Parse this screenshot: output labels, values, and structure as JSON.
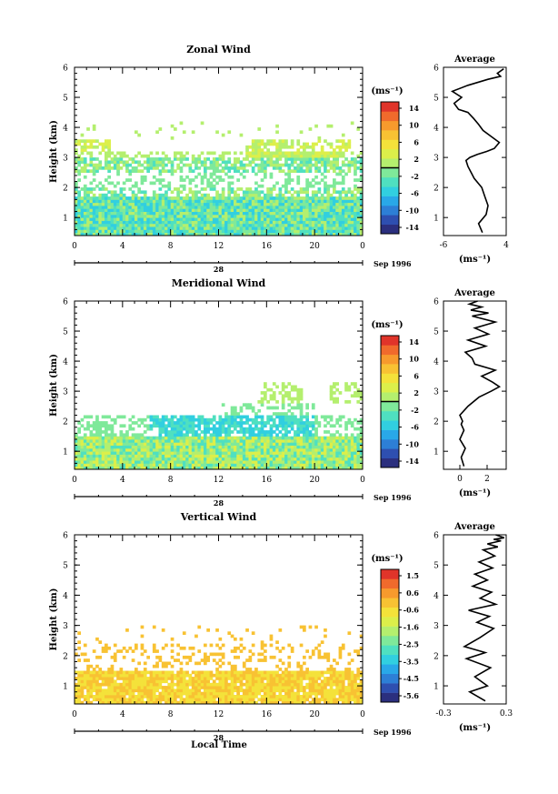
{
  "figure": {
    "date_label": "Sep 1996",
    "xlabel_bottom": "Local Time",
    "day_label": "28",
    "units_label": "(ms⁻¹)",
    "avg_unit_label": "(ms⁻¹)"
  },
  "chart_data": [
    {
      "type": "heatmap",
      "title": "Zonal Wind",
      "ylabel": "Height (km)",
      "xlabel": "Local Time",
      "x_ticks": [
        "0",
        "4",
        "8",
        "12",
        "16",
        "20",
        "0"
      ],
      "xlim": [
        0,
        24
      ],
      "y_ticks": [
        "1",
        "2",
        "3",
        "4",
        "5",
        "6"
      ],
      "ylim": [
        0.4,
        6
      ],
      "day_label": "28",
      "date_label": "Sep 1996",
      "colorbar": {
        "label": "(ms⁻¹)",
        "ticks": [
          "14",
          "10",
          "6",
          "2",
          "-2",
          "-6",
          "-10",
          "-14"
        ],
        "range": [
          -16,
          16
        ],
        "colors": [
          "#2b2f7e",
          "#2e4fb0",
          "#2d7fd6",
          "#29a8e8",
          "#31cfe0",
          "#4fe0c0",
          "#7fe99a",
          "#b4ef6e",
          "#dcef4a",
          "#f4e23a",
          "#f8c233",
          "#f79a2d",
          "#f06a2c",
          "#e0342a"
        ]
      }
    },
    {
      "type": "line",
      "title": "Average",
      "xlabel": "(ms⁻¹)",
      "x_ticks": [
        "-6",
        "4"
      ],
      "xlim": [
        -6,
        4
      ],
      "y_ticks": [
        "1",
        "2",
        "3",
        "4",
        "5",
        "6"
      ],
      "ylim": [
        0.4,
        6
      ],
      "series": [
        {
          "x": [
            0.2,
            -0.4,
            0.8,
            1.1,
            0.6,
            0.1,
            -1.1,
            -1.6,
            -2.1,
            -2.4,
            -1.8,
            -0.6,
            0.9,
            2.1,
            2.9,
            1.6,
            0.3,
            -0.4,
            -1.2,
            -2.1,
            -3.6,
            -4.3,
            -3.1,
            -4.6,
            -2.1,
            1.1,
            3.1,
            2.6,
            3.6
          ],
          "y": [
            0.5,
            0.8,
            1.1,
            1.4,
            1.7,
            2.0,
            2.3,
            2.5,
            2.7,
            2.9,
            3.0,
            3.1,
            3.2,
            3.3,
            3.5,
            3.7,
            3.9,
            4.1,
            4.3,
            4.5,
            4.6,
            4.8,
            5.0,
            5.2,
            5.4,
            5.6,
            5.7,
            5.8,
            5.95
          ]
        }
      ]
    },
    {
      "type": "heatmap",
      "title": "Meridional Wind",
      "ylabel": "Height (km)",
      "xlabel": "Local Time",
      "x_ticks": [
        "0",
        "4",
        "8",
        "12",
        "16",
        "20",
        "0"
      ],
      "xlim": [
        0,
        24
      ],
      "y_ticks": [
        "1",
        "2",
        "3",
        "4",
        "5",
        "6"
      ],
      "ylim": [
        0.4,
        6
      ],
      "day_label": "28",
      "date_label": "Sep 1996",
      "colorbar": {
        "label": "(ms⁻¹)",
        "ticks": [
          "14",
          "10",
          "6",
          "2",
          "-2",
          "-6",
          "-10",
          "-14"
        ],
        "range": [
          -16,
          16
        ],
        "colors": [
          "#2b2f7e",
          "#2e4fb0",
          "#2d7fd6",
          "#29a8e8",
          "#31cfe0",
          "#4fe0c0",
          "#7fe99a",
          "#b4ef6e",
          "#dcef4a",
          "#f4e23a",
          "#f8c233",
          "#f79a2d",
          "#f06a2c",
          "#e0342a"
        ]
      }
    },
    {
      "type": "line",
      "title": "Average",
      "xlabel": "(ms⁻¹)",
      "x_ticks": [
        "0",
        "2"
      ],
      "xlim": [
        -1.2,
        3.4
      ],
      "y_ticks": [
        "1",
        "2",
        "3",
        "4",
        "5",
        "6"
      ],
      "ylim": [
        0.4,
        6
      ],
      "series": [
        {
          "x": [
            0.3,
            0.1,
            0.4,
            0.0,
            0.3,
            0.1,
            0.2,
            0.0,
            0.6,
            1.4,
            2.3,
            2.9,
            2.4,
            1.6,
            2.6,
            1.1,
            0.9,
            0.4,
            1.9,
            0.6,
            2.1,
            1.1,
            2.6,
            0.9,
            2.1,
            0.8,
            1.6,
            0.7,
            1.3
          ],
          "y": [
            0.5,
            0.8,
            1.1,
            1.4,
            1.7,
            1.9,
            2.0,
            2.2,
            2.5,
            2.8,
            3.0,
            3.15,
            3.3,
            3.5,
            3.7,
            3.9,
            4.1,
            4.3,
            4.5,
            4.7,
            4.9,
            5.1,
            5.3,
            5.5,
            5.6,
            5.7,
            5.8,
            5.9,
            6.0
          ]
        }
      ]
    },
    {
      "type": "heatmap",
      "title": "Vertical Wind",
      "ylabel": "Height (km)",
      "xlabel": "Local Time",
      "x_ticks": [
        "0",
        "4",
        "8",
        "12",
        "16",
        "20",
        "0"
      ],
      "xlim": [
        0,
        24
      ],
      "y_ticks": [
        "1",
        "2",
        "3",
        "4",
        "5",
        "6"
      ],
      "ylim": [
        0.4,
        6
      ],
      "day_label": "28",
      "date_label": "Sep 1996",
      "colorbar": {
        "label": "(ms⁻¹)",
        "ticks": [
          "1.5",
          "0.6",
          "-0.6",
          "-1.6",
          "-2.5",
          "-3.5",
          "-4.5",
          "-5.6"
        ],
        "range": [
          -6,
          2
        ],
        "colors": [
          "#2b2f7e",
          "#2e4fb0",
          "#2d7fd6",
          "#29a8e8",
          "#31cfe0",
          "#4fe0c0",
          "#7fe99a",
          "#b4ef6e",
          "#dcef4a",
          "#f4e23a",
          "#f8c233",
          "#f79a2d",
          "#f06a2c",
          "#e0342a"
        ]
      }
    },
    {
      "type": "line",
      "title": "Average",
      "xlabel": "(ms⁻¹)",
      "x_ticks": [
        "-0.3",
        "0.3"
      ],
      "xlim": [
        -0.3,
        0.3
      ],
      "y_ticks": [
        "1",
        "2",
        "3",
        "4",
        "5",
        "6"
      ],
      "ylim": [
        0.4,
        6
      ],
      "series": [
        {
          "x": [
            0.1,
            -0.05,
            0.12,
            0.0,
            0.15,
            -0.08,
            0.1,
            -0.1,
            0.05,
            0.18,
            0.02,
            0.14,
            -0.06,
            0.2,
            0.05,
            0.16,
            -0.02,
            0.12,
            0.0,
            0.17,
            0.04,
            0.19,
            0.08,
            0.22,
            0.12,
            0.25,
            0.18,
            0.28,
            0.2
          ],
          "y": [
            0.5,
            0.8,
            1.0,
            1.3,
            1.6,
            1.9,
            2.1,
            2.3,
            2.6,
            2.9,
            3.1,
            3.3,
            3.5,
            3.7,
            3.9,
            4.1,
            4.3,
            4.5,
            4.7,
            4.9,
            5.1,
            5.3,
            5.5,
            5.6,
            5.7,
            5.8,
            5.85,
            5.9,
            6.0
          ]
        }
      ]
    }
  ]
}
